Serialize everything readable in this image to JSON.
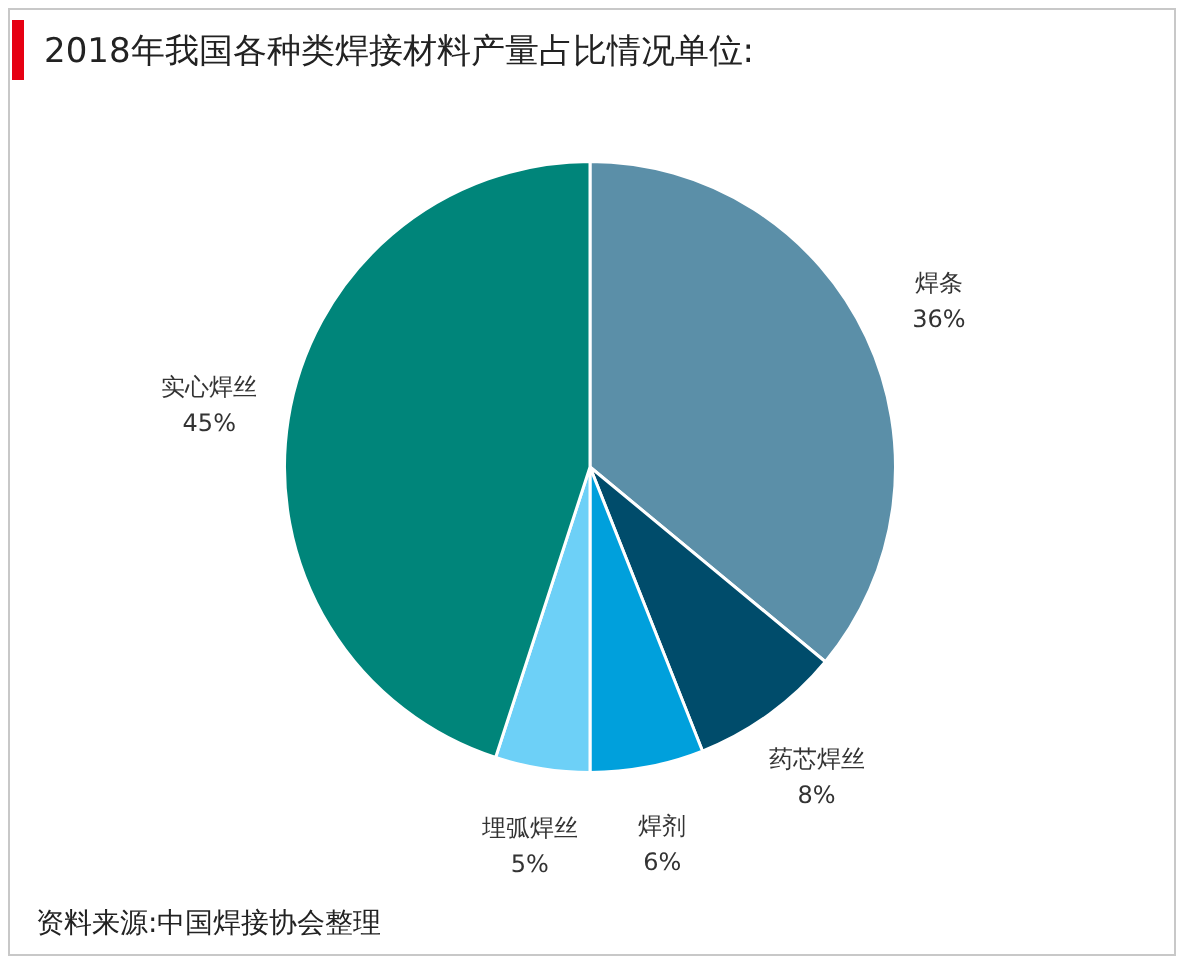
{
  "chart_data": {
    "type": "pie",
    "title": "2018年我国各种类焊接材料产量占比情况单位:",
    "categories": [
      "焊条",
      "药芯焊丝",
      "焊剂",
      "埋弧焊丝",
      "实心焊丝"
    ],
    "values": [
      36,
      8,
      6,
      5,
      45
    ],
    "value_labels": [
      "36%",
      "8%",
      "6%",
      "5%",
      "45%"
    ],
    "colors": [
      "#5b8fa8",
      "#004c6b",
      "#00a0dc",
      "#6dd0f7",
      "#00857a"
    ],
    "legend": false,
    "annotations": [
      "资料来源:中国焊接协会整理"
    ]
  }
}
